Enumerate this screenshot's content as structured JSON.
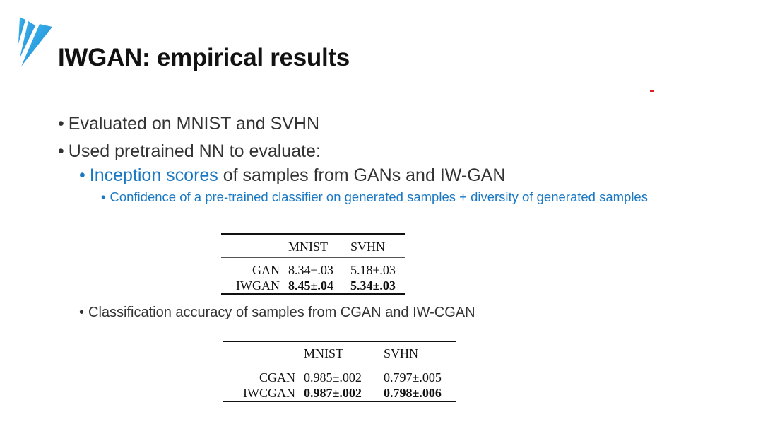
{
  "title": "IWGAN: empirical results",
  "bullets": {
    "b1": "Evaluated on MNIST and SVHN",
    "b2": "Used pretrained NN to evaluate:",
    "b3_highlight": "Inception scores",
    "b3_rest": " of samples from GANs and IW-GAN",
    "b4": "Confidence of a pre-trained classifier on generated samples + diversity of generated samples",
    "b5": "Classification accuracy of samples from CGAN and IW-CGAN",
    "bullet_char": "•"
  },
  "table1": {
    "headers": [
      "",
      "MNIST",
      "SVHN"
    ],
    "rows": [
      {
        "label": "GAN",
        "mnist": "8.34±.03",
        "svhn": "5.18±.03",
        "bold": false
      },
      {
        "label": "IWGAN",
        "mnist": "8.45±.04",
        "svhn": "5.34±.03",
        "bold": true
      }
    ]
  },
  "table2": {
    "headers": [
      "",
      "MNIST",
      "SVHN"
    ],
    "rows": [
      {
        "label": "CGAN",
        "mnist": "0.985±.002",
        "svhn": "0.797±.005",
        "bold": false
      },
      {
        "label": "IWCGAN",
        "mnist": "0.987±.002",
        "svhn": "0.798±.006",
        "bold": true
      }
    ]
  },
  "colors": {
    "accent_blue": "#1a78c2",
    "logo_blue": "#2a9de0",
    "mark_red": "#e02020"
  },
  "icons": {
    "logo": "wing-logo-icon"
  }
}
